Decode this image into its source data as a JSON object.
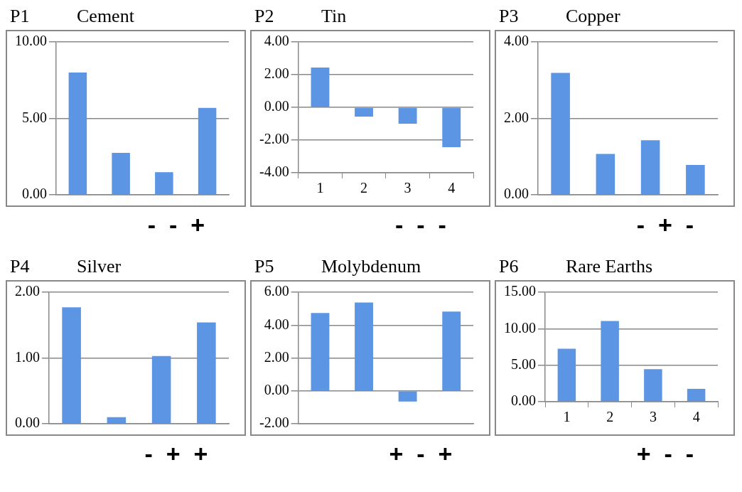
{
  "chart_data": [
    {
      "type": "bar",
      "title": "Cement",
      "annotations": [
        "P1",
        "-  -  +"
      ],
      "categories": [
        null,
        null,
        null,
        null
      ],
      "values": [
        8.0,
        2.75,
        1.48,
        5.69
      ],
      "color": "#5b95e3",
      "ylim": [
        0,
        10
      ],
      "yticks": [
        {
          "value": 0,
          "label": "0.00"
        },
        {
          "value": 5,
          "label": "5.00"
        },
        {
          "value": 10,
          "label": "10.00"
        }
      ],
      "grid": "y",
      "tick_labels": "y"
    },
    {
      "type": "bar",
      "title": "Tin",
      "annotations": [
        "P2",
        "-  -  -"
      ],
      "categories": [
        "1",
        "2",
        "3",
        "4"
      ],
      "values": [
        2.44,
        -0.57,
        -1.0,
        -2.44
      ],
      "color": "#5b95e3",
      "ylim": [
        -4,
        4
      ],
      "yticks": [
        {
          "value": -4,
          "label": "-4.00"
        },
        {
          "value": -2,
          "label": "-2.00"
        },
        {
          "value": 0,
          "label": "0.00"
        },
        {
          "value": 2,
          "label": "2.00"
        },
        {
          "value": 4,
          "label": "4.00"
        }
      ],
      "grid": "y"
    },
    {
      "type": "bar",
      "title": "Copper",
      "annotations": [
        "P3",
        "-  +  -"
      ],
      "categories": [
        null,
        null,
        null,
        null
      ],
      "values": [
        3.19,
        1.07,
        1.43,
        0.78
      ],
      "color": "#5b95e3",
      "ylim": [
        0,
        4
      ],
      "yticks": [
        {
          "value": 0,
          "label": "0.00"
        },
        {
          "value": 2,
          "label": "2.00"
        },
        {
          "value": 4,
          "label": "4.00"
        }
      ],
      "grid": "y",
      "tick_labels": "y"
    },
    {
      "type": "bar",
      "title": "Silver",
      "annotations": [
        "P4",
        "-  +  +"
      ],
      "categories": [
        null,
        null,
        null,
        null
      ],
      "values": [
        1.77,
        0.1,
        1.03,
        1.54
      ],
      "color": "#5b95e3",
      "ylim": [
        0,
        2
      ],
      "yticks": [
        {
          "value": 0,
          "label": "0.00"
        },
        {
          "value": 1,
          "label": "1.00"
        },
        {
          "value": 2,
          "label": "2.00"
        }
      ],
      "grid": "y",
      "tick_labels": "y"
    },
    {
      "type": "bar",
      "title": "Molybdenum",
      "annotations": [
        "P5",
        "+  -  +"
      ],
      "categories": [
        null,
        null,
        null,
        null
      ],
      "values": [
        4.73,
        5.37,
        -0.65,
        4.82
      ],
      "color": "#5b95e3",
      "ylim": [
        -2,
        6
      ],
      "yticks": [
        {
          "value": -2,
          "label": "-2.00"
        },
        {
          "value": 0,
          "label": "0.00"
        },
        {
          "value": 2,
          "label": "2.00"
        },
        {
          "value": 4,
          "label": "4.00"
        },
        {
          "value": 6,
          "label": "6.00"
        }
      ],
      "grid": "y",
      "tick_labels": "y"
    },
    {
      "type": "bar",
      "title": "Rare Earths",
      "annotations": [
        "P6",
        "+  -  -"
      ],
      "categories": [
        "1",
        "2",
        "3",
        "4"
      ],
      "values": [
        7.26,
        11.05,
        4.46,
        1.76
      ],
      "color": "#5b95e3",
      "ylim": [
        0,
        15
      ],
      "yticks": [
        {
          "value": 0,
          "label": "0.00"
        },
        {
          "value": 5,
          "label": "5.00"
        },
        {
          "value": 10,
          "label": "10.00"
        },
        {
          "value": 15,
          "label": "15.00"
        }
      ],
      "grid": "y"
    }
  ]
}
